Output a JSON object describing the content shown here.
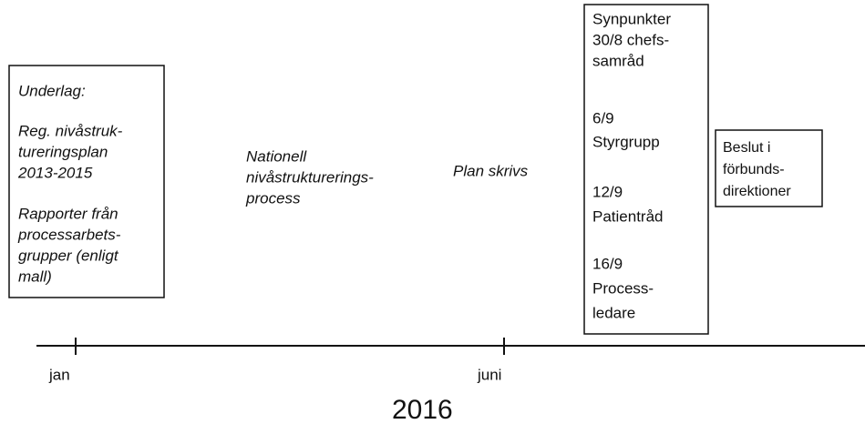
{
  "underlag_box": {
    "heading": "Underlag:",
    "lines": [
      "Reg. nivåstruk-",
      "tureringsplan",
      "2013-2015",
      "Rapporter från",
      "processarbets-",
      "grupper (enligt",
      "mall)"
    ]
  },
  "national_process": [
    "Nationell",
    "nivåstrukturerings-",
    "process"
  ],
  "plan": "Plan skrivs",
  "review_box": [
    "Synpunkter",
    "30/8 chefs-",
    "samråd",
    "6/9",
    "Styrgrupp",
    "12/9",
    "Patientråd",
    "16/9",
    "Process-",
    "ledare"
  ],
  "decision_box": [
    "Beslut i",
    "förbunds-",
    "direktioner"
  ],
  "axis": {
    "labels": [
      "jan",
      "juni"
    ],
    "year": "2016"
  }
}
